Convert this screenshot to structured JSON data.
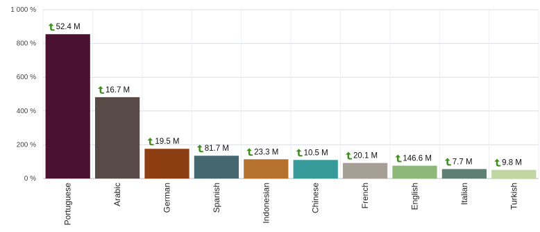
{
  "chart_data": {
    "type": "bar",
    "title": "",
    "xlabel": "",
    "ylabel": "",
    "ylim": [
      0,
      1000
    ],
    "y_ticks": [
      "0 %",
      "200 %",
      "400 %",
      "600 %",
      "800 %",
      "1 000 %"
    ],
    "y_tick_values": [
      0,
      200,
      400,
      600,
      800,
      1000
    ],
    "categories": [
      "Portuguese",
      "Arabic",
      "German",
      "Spanish",
      "Indonesian",
      "Chinese",
      "French",
      "English",
      "Italian",
      "Turkish"
    ],
    "values": [
      855,
      482,
      176,
      135,
      114,
      110,
      92,
      76,
      56,
      51
    ],
    "data_labels": [
      "52.4 M",
      "16.7 M",
      "19.5 M",
      "81.7 M",
      "23.3 M",
      "10.5 M",
      "20.1 M",
      "146.6 M",
      "7.7 M",
      "9.8 M"
    ],
    "label_icon": "up-arrow-icon",
    "colors": [
      "#4a1230",
      "#574a47",
      "#8c3d12",
      "#45676f",
      "#b5722e",
      "#379b9b",
      "#a69f96",
      "#8cb87a",
      "#5f7f74",
      "#bfd6a0"
    ],
    "grid": true,
    "legend": "none"
  }
}
